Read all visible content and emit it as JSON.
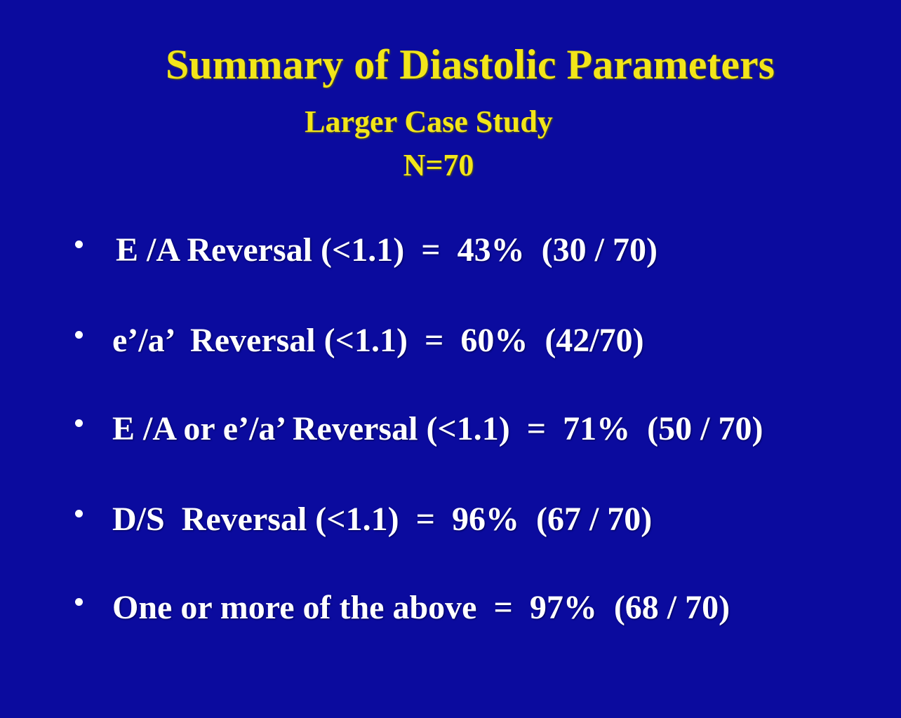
{
  "header": {
    "title": "Summary of Diastolic Parameters",
    "subtitle": "Larger Case Study",
    "sample": "N=70"
  },
  "bullets": [
    "E /A Reversal (<1.1)  =  43%  (30 / 70)",
    "e’/a’  Reversal (<1.1)  =  60%  (42/70)",
    "E /A or e’/a’ Reversal (<1.1)  =  71%  (50 / 70)",
    "D/S  Reversal (<1.1)  =  96%  (67 / 70)",
    "One or more of the above  =  97%  (68 / 70)"
  ]
}
